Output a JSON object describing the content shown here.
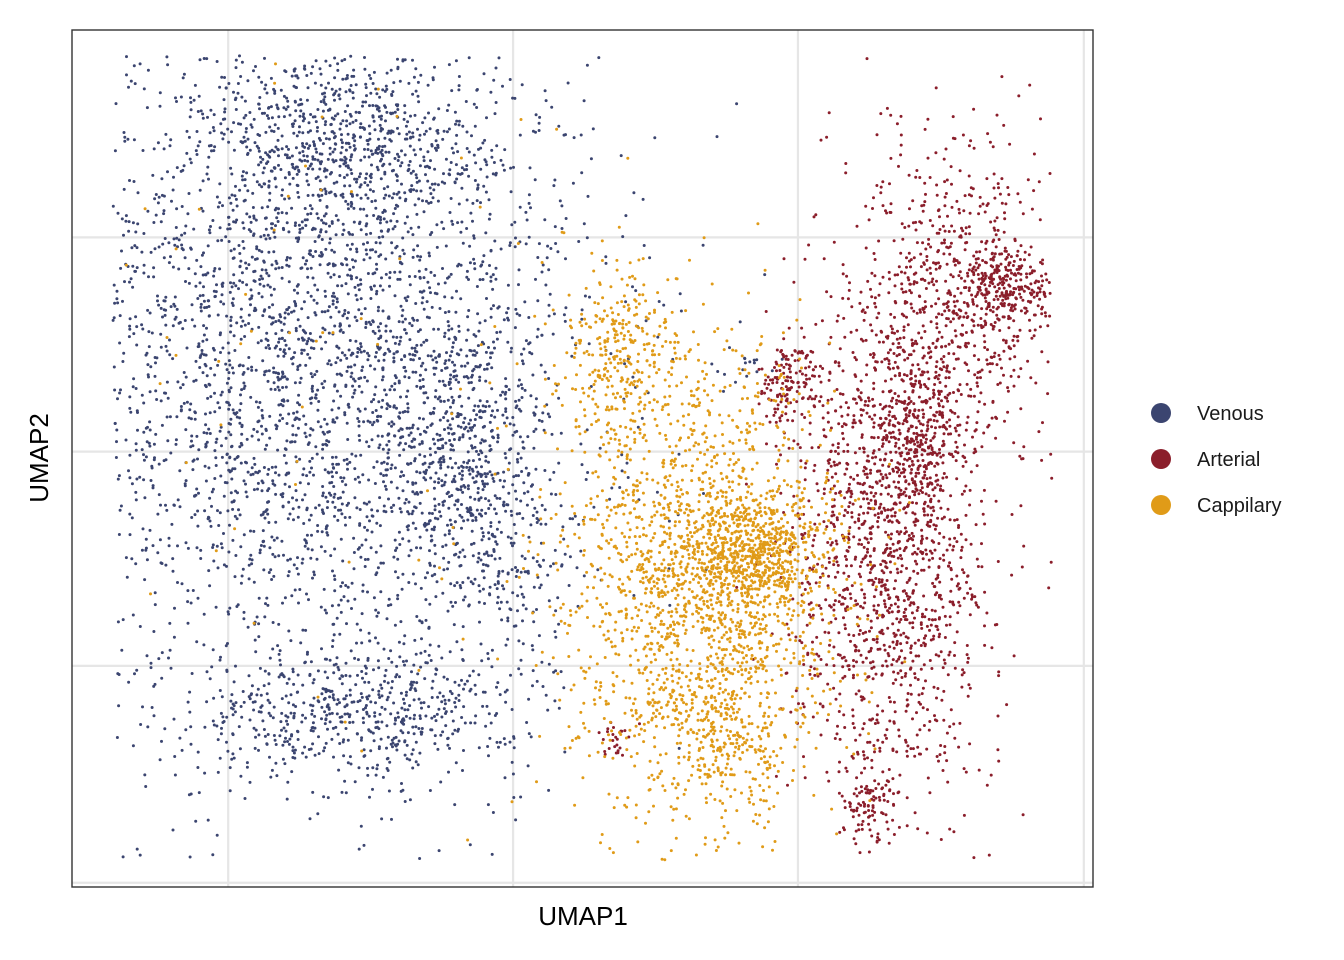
{
  "chart_data": {
    "type": "scatter",
    "title": "",
    "xlabel": "UMAP1",
    "ylabel": "UMAP2",
    "xlim": [
      0,
      100
    ],
    "ylim": [
      0,
      100
    ],
    "grid": true,
    "tick_labels_shown": false,
    "legend_position": "right",
    "series": [
      {
        "name": "Venous",
        "color": "#3b4570",
        "clusters": [
          {
            "cx": 23,
            "cy": 62,
            "sx": 14,
            "sy": 22,
            "n": 3600
          },
          {
            "cx": 27,
            "cy": 86,
            "sx": 7,
            "sy": 5,
            "n": 500
          },
          {
            "cx": 28,
            "cy": 20,
            "sx": 8,
            "sy": 3.5,
            "n": 500
          },
          {
            "cx": 38,
            "cy": 50,
            "sx": 4,
            "sy": 10,
            "n": 500
          },
          {
            "cx": 43,
            "cy": 37,
            "sx": 2.5,
            "sy": 8,
            "n": 120
          },
          {
            "cx": 66,
            "cy": 61,
            "sx": 1.2,
            "sy": 0.8,
            "n": 15
          }
        ]
      },
      {
        "name": "Arterial",
        "color": "#8b1e2b",
        "clusters": [
          {
            "cx": 80,
            "cy": 40,
            "sx": 5,
            "sy": 15,
            "n": 1500
          },
          {
            "cx": 87,
            "cy": 70,
            "sx": 5,
            "sy": 9,
            "n": 700
          },
          {
            "cx": 92,
            "cy": 70,
            "sx": 2.2,
            "sy": 2,
            "n": 200
          },
          {
            "cx": 83,
            "cy": 51,
            "sx": 2,
            "sy": 5,
            "n": 250
          },
          {
            "cx": 70,
            "cy": 59,
            "sx": 1.4,
            "sy": 2.5,
            "n": 120
          },
          {
            "cx": 78,
            "cy": 10,
            "sx": 1.5,
            "sy": 2.5,
            "n": 100
          },
          {
            "cx": 53,
            "cy": 17,
            "sx": 0.8,
            "sy": 1.2,
            "n": 25
          }
        ]
      },
      {
        "name": "Cappilary",
        "color": "#e09b18",
        "clusters": [
          {
            "cx": 62,
            "cy": 35,
            "sx": 6.5,
            "sy": 13,
            "n": 2000
          },
          {
            "cx": 54,
            "cy": 62,
            "sx": 3,
            "sy": 5,
            "n": 300
          },
          {
            "cx": 67,
            "cy": 39,
            "sx": 3,
            "sy": 3,
            "n": 500
          },
          {
            "cx": 64,
            "cy": 17,
            "sx": 3,
            "sy": 4,
            "n": 200
          },
          {
            "cx": 25,
            "cy": 60,
            "sx": 16,
            "sy": 25,
            "n": 80
          }
        ]
      }
    ]
  }
}
